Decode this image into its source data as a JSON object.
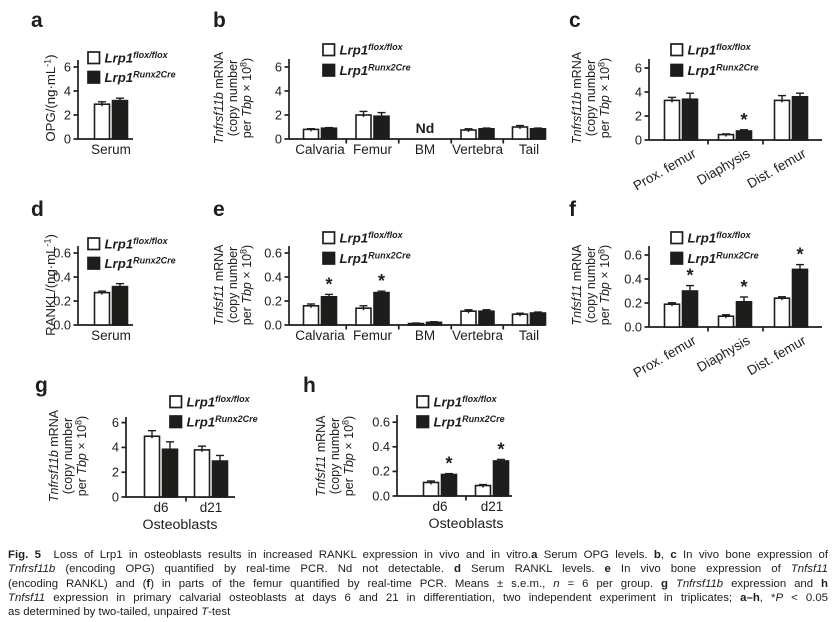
{
  "figure": {
    "label": "Fig. 5"
  },
  "colors": {
    "ink": "#1d1d1b",
    "open_fill": "#ffffff",
    "filled_fill": "#1d1d1b",
    "background": "#ffffff"
  },
  "legend": {
    "items": [
      {
        "base": "Lrp1",
        "sup": "flox/flox",
        "fill": "open"
      },
      {
        "base": "Lrp1",
        "sup": "Runx2Cre",
        "fill": "filled"
      }
    ]
  },
  "chart_data": [
    {
      "id": "a",
      "letter": "a",
      "type": "bar",
      "ylabel_lines": [
        [
          {
            "t": "OPG/(ng·mL"
          },
          {
            "t": "-1",
            "sup": 1
          },
          {
            "t": ")"
          }
        ]
      ],
      "ylim": [
        0,
        6
      ],
      "yticks": [
        {
          "v": 0,
          "t": "0"
        },
        {
          "v": 2,
          "t": "2"
        },
        {
          "v": 4,
          "t": "4"
        },
        {
          "v": 6,
          "t": "6"
        }
      ],
      "categories": [
        "Serum"
      ],
      "series": [
        {
          "name": "Lrp1 flox/flox",
          "fill": "open",
          "values": [
            2.9
          ],
          "errors": [
            0.2
          ]
        },
        {
          "name": "Lrp1 Runx2Cre",
          "fill": "filled",
          "values": [
            3.2
          ],
          "errors": [
            0.2
          ]
        }
      ],
      "sig": []
    },
    {
      "id": "b",
      "letter": "b",
      "type": "bar",
      "ylabel_lines": [
        [
          {
            "t": "Tnfrsf11b",
            "i": 1
          },
          {
            "t": " mRNA"
          }
        ],
        [
          {
            "t": "(copy number"
          }
        ],
        [
          {
            "t": "per "
          },
          {
            "t": "Tbp",
            "i": 1
          },
          {
            "t": " × 10"
          },
          {
            "t": "8",
            "sup": 1
          },
          {
            "t": ")"
          }
        ]
      ],
      "ylim": [
        0,
        6
      ],
      "yticks": [
        {
          "v": 0,
          "t": "0"
        },
        {
          "v": 2,
          "t": "2"
        },
        {
          "v": 4,
          "t": "4"
        },
        {
          "v": 6,
          "t": "6"
        }
      ],
      "categories": [
        "Calvaria",
        "Femur",
        "BM",
        "Vertebra",
        "Tail"
      ],
      "series": [
        {
          "name": "Lrp1 flox/flox",
          "fill": "open",
          "values": [
            0.8,
            2.0,
            null,
            0.75,
            1.0
          ],
          "errors": [
            0.06,
            0.3,
            null,
            0.1,
            0.12
          ]
        },
        {
          "name": "Lrp1 Runx2Cre",
          "fill": "filled",
          "values": [
            0.9,
            1.9,
            null,
            0.85,
            0.85
          ],
          "errors": [
            0.05,
            0.3,
            null,
            0.06,
            0.06
          ]
        }
      ],
      "nd": {
        "category": 2,
        "label": "Nd"
      },
      "sig": []
    },
    {
      "id": "c",
      "letter": "c",
      "type": "bar",
      "ylabel_lines": [
        [
          {
            "t": "Tnfrsf11b",
            "i": 1
          },
          {
            "t": " mRNA"
          }
        ],
        [
          {
            "t": "(copy number"
          }
        ],
        [
          {
            "t": "per "
          },
          {
            "t": "Tbp",
            "i": 1
          },
          {
            "t": " × 10"
          },
          {
            "t": "8",
            "sup": 1
          },
          {
            "t": ")"
          }
        ]
      ],
      "ylim": [
        0,
        6
      ],
      "yticks": [
        {
          "v": 0,
          "t": "0"
        },
        {
          "v": 2,
          "t": "2"
        },
        {
          "v": 4,
          "t": "4"
        },
        {
          "v": 6,
          "t": "6"
        }
      ],
      "categories": [
        "Prox. femur",
        "Diaphysis",
        "Dist. femur"
      ],
      "series": [
        {
          "name": "Lrp1 flox/flox",
          "fill": "open",
          "values": [
            3.3,
            0.45,
            3.3
          ],
          "errors": [
            0.25,
            0.06,
            0.4
          ]
        },
        {
          "name": "Lrp1 Runx2Cre",
          "fill": "filled",
          "values": [
            3.4,
            0.75,
            3.6
          ],
          "errors": [
            0.5,
            0.1,
            0.3
          ]
        }
      ],
      "sig": [
        {
          "category": 1,
          "series": 1,
          "symbol": "*"
        }
      ]
    },
    {
      "id": "d",
      "letter": "d",
      "type": "bar",
      "ylabel_lines": [
        [
          {
            "t": "RANKL/(ng·mL"
          },
          {
            "t": "-1",
            "sup": 1
          },
          {
            "t": ")"
          }
        ]
      ],
      "ylim": [
        0,
        0.6
      ],
      "yticks": [
        {
          "v": 0,
          "t": "0.0"
        },
        {
          "v": 0.2,
          "t": "0.2"
        },
        {
          "v": 0.4,
          "t": "0.4"
        },
        {
          "v": 0.6,
          "t": "0.6"
        }
      ],
      "categories": [
        "Serum"
      ],
      "series": [
        {
          "name": "Lrp1 flox/flox",
          "fill": "open",
          "values": [
            0.27
          ],
          "errors": [
            0.012
          ]
        },
        {
          "name": "Lrp1 Runx2Cre",
          "fill": "filled",
          "values": [
            0.32
          ],
          "errors": [
            0.025
          ]
        }
      ],
      "sig": []
    },
    {
      "id": "e",
      "letter": "e",
      "type": "bar",
      "ylabel_lines": [
        [
          {
            "t": "Tnfsf11",
            "i": 1
          },
          {
            "t": " mRNA"
          }
        ],
        [
          {
            "t": "(copy number"
          }
        ],
        [
          {
            "t": "per "
          },
          {
            "t": "Tbp",
            "i": 1
          },
          {
            "t": " × 10"
          },
          {
            "t": "8",
            "sup": 1
          },
          {
            "t": ")"
          }
        ]
      ],
      "ylim": [
        0,
        0.6
      ],
      "yticks": [
        {
          "v": 0,
          "t": "0.0"
        },
        {
          "v": 0.2,
          "t": "0.2"
        },
        {
          "v": 0.4,
          "t": "0.4"
        },
        {
          "v": 0.6,
          "t": "0.6"
        }
      ],
      "categories": [
        "Calvaria",
        "Femur",
        "BM",
        "Vertebra",
        "Tail"
      ],
      "series": [
        {
          "name": "Lrp1 flox/flox",
          "fill": "open",
          "values": [
            0.16,
            0.14,
            0.012,
            0.115,
            0.09
          ],
          "errors": [
            0.015,
            0.02,
            0.004,
            0.012,
            0.008
          ]
        },
        {
          "name": "Lrp1 Runx2Cre",
          "fill": "filled",
          "values": [
            0.235,
            0.27,
            0.022,
            0.115,
            0.1
          ],
          "errors": [
            0.02,
            0.012,
            0.005,
            0.012,
            0.008
          ]
        }
      ],
      "sig": [
        {
          "category": 0,
          "series": 1,
          "symbol": "*"
        },
        {
          "category": 1,
          "series": 1,
          "symbol": "*"
        }
      ]
    },
    {
      "id": "f",
      "letter": "f",
      "type": "bar",
      "ylabel_lines": [
        [
          {
            "t": "Tnfsf11",
            "i": 1
          },
          {
            "t": " mRNA"
          }
        ],
        [
          {
            "t": "(copy number"
          }
        ],
        [
          {
            "t": "per "
          },
          {
            "t": "Tbp",
            "i": 1
          },
          {
            "t": " × 10"
          },
          {
            "t": "8",
            "sup": 1
          },
          {
            "t": ")"
          }
        ]
      ],
      "ylim": [
        0,
        0.6
      ],
      "yticks": [
        {
          "v": 0,
          "t": "0.0"
        },
        {
          "v": 0.2,
          "t": "0.2"
        },
        {
          "v": 0.4,
          "t": "0.4"
        },
        {
          "v": 0.6,
          "t": "0.6"
        }
      ],
      "categories": [
        "Prox. femur",
        "Diaphysis",
        "Dist. femur"
      ],
      "series": [
        {
          "name": "Lrp1 flox/flox",
          "fill": "open",
          "values": [
            0.19,
            0.09,
            0.24
          ],
          "errors": [
            0.012,
            0.012,
            0.012
          ]
        },
        {
          "name": "Lrp1 Runx2Cre",
          "fill": "filled",
          "values": [
            0.3,
            0.21,
            0.48
          ],
          "errors": [
            0.045,
            0.04,
            0.04
          ]
        }
      ],
      "sig": [
        {
          "category": 0,
          "series": 1,
          "symbol": "*"
        },
        {
          "category": 1,
          "series": 1,
          "symbol": "*"
        },
        {
          "category": 2,
          "series": 1,
          "symbol": "*"
        }
      ]
    },
    {
      "id": "g",
      "letter": "g",
      "type": "bar",
      "ylabel_lines": [
        [
          {
            "t": "Tnfrsf11b",
            "i": 1
          },
          {
            "t": " mRNA"
          }
        ],
        [
          {
            "t": "(copy number"
          }
        ],
        [
          {
            "t": "per "
          },
          {
            "t": "Tbp",
            "i": 1
          },
          {
            "t": " × 10"
          },
          {
            "t": "8",
            "sup": 1
          },
          {
            "t": ")"
          }
        ]
      ],
      "ylim": [
        0,
        6
      ],
      "yticks": [
        {
          "v": 0,
          "t": "0"
        },
        {
          "v": 2,
          "t": "2"
        },
        {
          "v": 4,
          "t": "4"
        },
        {
          "v": 6,
          "t": "6"
        }
      ],
      "categories": [
        "d6",
        "d21"
      ],
      "xlabel": "Osteoblasts",
      "series": [
        {
          "name": "Lrp1 flox/flox",
          "fill": "open",
          "values": [
            4.9,
            3.8
          ],
          "errors": [
            0.45,
            0.3
          ]
        },
        {
          "name": "Lrp1 Runx2Cre",
          "fill": "filled",
          "values": [
            3.85,
            2.9
          ],
          "errors": [
            0.6,
            0.45
          ]
        }
      ],
      "sig": []
    },
    {
      "id": "h",
      "letter": "h",
      "type": "bar",
      "ylabel_lines": [
        [
          {
            "t": "Tnfsf11",
            "i": 1
          },
          {
            "t": " mRNA"
          }
        ],
        [
          {
            "t": "(copy number"
          }
        ],
        [
          {
            "t": "per "
          },
          {
            "t": "Tbp",
            "i": 1
          },
          {
            "t": " × 10"
          },
          {
            "t": "8",
            "sup": 1
          },
          {
            "t": ")"
          }
        ]
      ],
      "ylim": [
        0,
        0.6
      ],
      "yticks": [
        {
          "v": 0,
          "t": "0.0"
        },
        {
          "v": 0.2,
          "t": "0.2"
        },
        {
          "v": 0.4,
          "t": "0.4"
        },
        {
          "v": 0.6,
          "t": "0.6"
        }
      ],
      "categories": [
        "d6",
        "d21"
      ],
      "xlabel": "Osteoblasts",
      "series": [
        {
          "name": "Lrp1 flox/flox",
          "fill": "open",
          "values": [
            0.11,
            0.085
          ],
          "errors": [
            0.012,
            0.008
          ]
        },
        {
          "name": "Lrp1 Runx2Cre",
          "fill": "filled",
          "values": [
            0.175,
            0.285
          ],
          "errors": [
            0.007,
            0.012
          ]
        }
      ],
      "sig": [
        {
          "category": 0,
          "series": 1,
          "symbol": "*"
        },
        {
          "category": 1,
          "series": 1,
          "symbol": "*"
        }
      ]
    }
  ],
  "caption": {
    "lines": [
      [
        {
          "t": "Fig. 5",
          "b": 1
        },
        {
          "t": "  Loss of Lrp1 in osteoblasts results in increased RANKL expression in vivo and in vitro."
        },
        {
          "t": "a",
          "b": 1
        },
        {
          "t": " Serum OPG levels. "
        },
        {
          "t": "b",
          "b": 1
        },
        {
          "t": ", "
        },
        {
          "t": "c",
          "b": 1
        },
        {
          "t": " In vivo bone expression of"
        }
      ],
      [
        {
          "t": "Tnfrsf11b",
          "i": 1
        },
        {
          "t": " (encoding OPG) quantified by real-time PCR. Nd not detectable. "
        },
        {
          "t": "d",
          "b": 1
        },
        {
          "t": " Serum RANKL levels. "
        },
        {
          "t": "e",
          "b": 1
        },
        {
          "t": " In vivo bone expression of "
        },
        {
          "t": "Tnfsf11",
          "i": 1
        }
      ],
      [
        {
          "t": "(encoding RANKL) and ("
        },
        {
          "t": "f",
          "b": 1
        },
        {
          "t": ") in parts of the femur quantified by real-time PCR. Means ± s.e.m., "
        },
        {
          "t": "n",
          "i": 1
        },
        {
          "t": " = 6 per group. "
        },
        {
          "t": "g",
          "b": 1
        },
        {
          "t": " "
        },
        {
          "t": "Tnfrsf11b",
          "i": 1
        },
        {
          "t": " expression and "
        },
        {
          "t": "h",
          "b": 1
        }
      ],
      [
        {
          "t": "Tnfsf11",
          "i": 1
        },
        {
          "t": " expression in primary calvarial osteoblasts at days 6 and 21 in differentiation, two independent experiment in triplicates; "
        },
        {
          "t": "a–h",
          "b": 1
        },
        {
          "t": ", *"
        },
        {
          "t": "P",
          "i": 1
        },
        {
          "t": " < 0.05"
        }
      ],
      [
        {
          "t": "as determined by two-tailed, unpaired "
        },
        {
          "t": "T",
          "i": 1
        },
        {
          "t": "-test"
        }
      ]
    ]
  }
}
